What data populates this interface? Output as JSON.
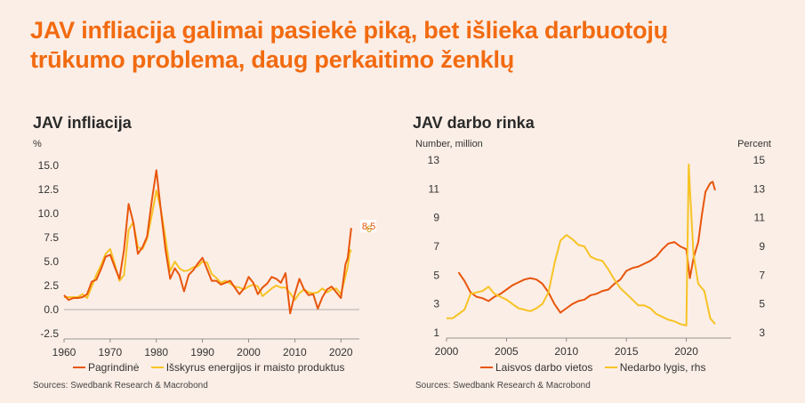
{
  "headline": {
    "line1": "JAV infliacija galimai pasiekė piką, bet išlieka darbuotojų",
    "line2": "trūkumo problema, daug perkaitimo ženklų"
  },
  "colors": {
    "headline": "#f26a10",
    "orange": "#e8550c",
    "yellow": "#f7c325",
    "background": "#fbeee6"
  },
  "chart_data": [
    {
      "type": "line",
      "title": "JAV infliacija",
      "ylabel": "%",
      "x_ticks": [
        "1960",
        "1970",
        "1980",
        "1990",
        "2000",
        "2010",
        "2020"
      ],
      "y_ticks": [
        "15.0",
        "12.5",
        "10.0",
        "7.5",
        "5.0",
        "2.5",
        "0.0",
        "-2.5"
      ],
      "xlim": [
        1960,
        2024
      ],
      "ylim": [
        -2.5,
        15
      ],
      "grid": false,
      "legend_position": "bottom",
      "end_labels": [
        "8.5",
        "6"
      ],
      "series": [
        {
          "name": "Pagrindinė",
          "color": "#e8550c",
          "x": [
            1960,
            1961,
            1962,
            1963,
            1964,
            1965,
            1966,
            1967,
            1968,
            1969,
            1970,
            1971,
            1972,
            1973,
            1974,
            1975,
            1976,
            1977,
            1978,
            1979,
            1980,
            1981,
            1982,
            1983,
            1984,
            1985,
            1986,
            1987,
            1988,
            1989,
            1990,
            1991,
            1992,
            1993,
            1994,
            1995,
            1996,
            1997,
            1998,
            1999,
            2000,
            2001,
            2002,
            2003,
            2004,
            2005,
            2006,
            2007,
            2008,
            2009,
            2010,
            2011,
            2012,
            2013,
            2014,
            2015,
            2016,
            2017,
            2018,
            2019,
            2020,
            2021,
            2021.5,
            2022,
            2022.25
          ],
          "values": [
            1.5,
            1.0,
            1.2,
            1.2,
            1.3,
            1.6,
            2.9,
            3.1,
            4.2,
            5.5,
            5.7,
            4.4,
            3.2,
            6.2,
            11.0,
            9.1,
            5.8,
            6.5,
            7.6,
            11.3,
            14.5,
            10.3,
            6.2,
            3.2,
            4.3,
            3.6,
            1.9,
            3.6,
            4.1,
            4.8,
            5.4,
            4.2,
            3.0,
            3.0,
            2.6,
            2.8,
            3.0,
            2.3,
            1.6,
            2.2,
            3.4,
            2.8,
            1.6,
            2.3,
            2.7,
            3.4,
            3.2,
            2.8,
            3.8,
            -0.4,
            1.6,
            3.2,
            2.1,
            1.5,
            1.6,
            0.1,
            1.3,
            2.1,
            2.4,
            1.8,
            1.2,
            4.7,
            5.4,
            7.5,
            8.5
          ]
        },
        {
          "name": "Išskyrus energijos ir maisto produktus",
          "color": "#f7c325",
          "x": [
            1960,
            1961,
            1962,
            1963,
            1964,
            1965,
            1966,
            1967,
            1968,
            1969,
            1970,
            1971,
            1972,
            1973,
            1974,
            1975,
            1976,
            1977,
            1978,
            1979,
            1980,
            1981,
            1982,
            1983,
            1984,
            1985,
            1986,
            1987,
            1988,
            1989,
            1990,
            1991,
            1992,
            1993,
            1994,
            1995,
            1996,
            1997,
            1998,
            1999,
            2000,
            2001,
            2002,
            2003,
            2004,
            2005,
            2006,
            2007,
            2008,
            2009,
            2010,
            2011,
            2012,
            2013,
            2014,
            2015,
            2016,
            2017,
            2018,
            2019,
            2020,
            2021,
            2021.5,
            2022,
            2022.25
          ],
          "values": [
            1.3,
            1.3,
            1.3,
            1.3,
            1.6,
            1.2,
            2.4,
            3.6,
            4.6,
            5.8,
            6.3,
            4.7,
            3.0,
            3.6,
            8.3,
            9.1,
            6.5,
            6.3,
            7.4,
            9.8,
            12.4,
            10.4,
            7.4,
            4.0,
            5.0,
            4.3,
            4.0,
            4.1,
            4.4,
            4.5,
            5.0,
            4.9,
            3.7,
            3.3,
            2.8,
            3.0,
            2.7,
            2.4,
            2.3,
            2.1,
            2.4,
            2.6,
            2.4,
            1.4,
            1.8,
            2.2,
            2.5,
            2.3,
            2.3,
            1.7,
            1.0,
            1.7,
            2.1,
            1.8,
            1.7,
            1.8,
            2.2,
            1.8,
            2.1,
            2.2,
            1.6,
            3.5,
            4.5,
            6.2,
            6.0
          ]
        }
      ]
    },
    {
      "type": "line",
      "title": "JAV darbo rinka",
      "ylabel": "Number, million",
      "y2label": "Percent",
      "x_ticks": [
        "2000",
        "2005",
        "2010",
        "2015",
        "2020"
      ],
      "y_ticks": [
        "13",
        "11",
        "9",
        "7",
        "5",
        "3",
        "1"
      ],
      "y2_ticks": [
        "15",
        "13",
        "11",
        "9",
        "7",
        "5",
        "3"
      ],
      "xlim": [
        2000,
        2023
      ],
      "ylim": [
        1,
        13
      ],
      "y2lim": [
        3,
        15
      ],
      "grid": false,
      "legend_position": "bottom",
      "series": [
        {
          "name": "Laisvos darbo vietos",
          "color": "#e8550c",
          "axis": "left",
          "x": [
            2001.0,
            2001.5,
            2002.0,
            2002.5,
            2003.0,
            2003.5,
            2004.0,
            2004.5,
            2005.0,
            2005.5,
            2006.0,
            2006.5,
            2007.0,
            2007.5,
            2008.0,
            2008.5,
            2009.0,
            2009.5,
            2010.0,
            2010.5,
            2011.0,
            2011.5,
            2012.0,
            2012.5,
            2013.0,
            2013.5,
            2014.0,
            2014.5,
            2015.0,
            2015.5,
            2016.0,
            2016.5,
            2017.0,
            2017.5,
            2018.0,
            2018.5,
            2019.0,
            2019.5,
            2020.0,
            2020.3,
            2020.6,
            2021.0,
            2021.3,
            2021.6,
            2022.0,
            2022.2,
            2022.4
          ],
          "values": [
            5.2,
            4.6,
            3.8,
            3.5,
            3.4,
            3.2,
            3.5,
            3.7,
            4.0,
            4.3,
            4.5,
            4.7,
            4.8,
            4.7,
            4.4,
            3.8,
            3.0,
            2.4,
            2.7,
            3.0,
            3.2,
            3.3,
            3.6,
            3.7,
            3.9,
            4.0,
            4.4,
            4.7,
            5.3,
            5.5,
            5.6,
            5.8,
            6.0,
            6.3,
            6.8,
            7.2,
            7.3,
            7.0,
            6.8,
            4.8,
            6.2,
            7.3,
            9.2,
            10.8,
            11.4,
            11.5,
            10.9
          ]
        },
        {
          "name": "Nedarbo lygis, rhs",
          "color": "#f7c325",
          "axis": "right",
          "x": [
            2000.0,
            2000.5,
            2001.0,
            2001.5,
            2002.0,
            2002.5,
            2003.0,
            2003.5,
            2004.0,
            2004.5,
            2005.0,
            2005.5,
            2006.0,
            2006.5,
            2007.0,
            2007.5,
            2008.0,
            2008.5,
            2009.0,
            2009.5,
            2010.0,
            2010.5,
            2011.0,
            2011.5,
            2012.0,
            2012.5,
            2013.0,
            2013.5,
            2014.0,
            2014.5,
            2015.0,
            2015.5,
            2016.0,
            2016.5,
            2017.0,
            2017.5,
            2018.0,
            2018.5,
            2019.0,
            2019.5,
            2020.0,
            2020.2,
            2020.3,
            2020.6,
            2021.0,
            2021.5,
            2022.0,
            2022.4
          ],
          "values": [
            4.0,
            4.0,
            4.3,
            4.6,
            5.7,
            5.8,
            5.9,
            6.2,
            5.7,
            5.5,
            5.3,
            5.0,
            4.7,
            4.6,
            4.5,
            4.7,
            5.0,
            5.8,
            7.8,
            9.4,
            9.8,
            9.5,
            9.1,
            9.0,
            8.3,
            8.1,
            8.0,
            7.4,
            6.7,
            6.1,
            5.7,
            5.3,
            4.9,
            4.9,
            4.7,
            4.3,
            4.1,
            3.9,
            3.8,
            3.6,
            3.5,
            14.7,
            13.0,
            8.4,
            6.4,
            5.9,
            4.0,
            3.6
          ]
        }
      ]
    }
  ],
  "left_chart": {
    "title": "JAV infliacija",
    "unit": "%",
    "legend": [
      "Pagrindinė",
      "Išskyrus energijos ir maisto produktus"
    ],
    "source": "Sources: Swedbank Research & Macrobond"
  },
  "right_chart": {
    "title": "JAV darbo rinka",
    "unit_left": "Number, million",
    "unit_right": "Percent",
    "legend": [
      "Laisvos darbo vietos",
      "Nedarbo lygis, rhs"
    ],
    "source": "Sources: Swedbank Research & Macrobond"
  }
}
